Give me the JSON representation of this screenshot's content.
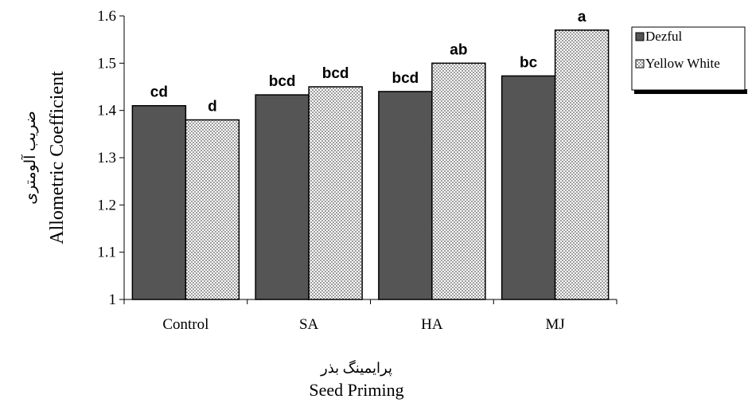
{
  "chart_data": {
    "type": "bar",
    "categories": [
      "Control",
      "SA",
      "HA",
      "MJ"
    ],
    "series": [
      {
        "name": "Dezful",
        "values": [
          1.41,
          1.433,
          1.44,
          1.473
        ],
        "labels": [
          "cd",
          "bcd",
          "bcd",
          "bc"
        ],
        "color": "#555555"
      },
      {
        "name": "Yellow White",
        "values": [
          1.38,
          1.45,
          1.5,
          1.57
        ],
        "labels": [
          "d",
          "bcd",
          "ab",
          "a"
        ],
        "color": "#dcdcdc",
        "pattern": "dotted"
      }
    ],
    "xlabel_fa": "پرایمینگ بذر",
    "xlabel": "Seed Priming",
    "ylabel_fa": "ضریب آلومتری",
    "ylabel": "Allometric Coefficient",
    "ylim": [
      1,
      1.6
    ],
    "yticks": [
      "1",
      "1.1",
      "1.2",
      "1.3",
      "1.4",
      "1.5",
      "1.6"
    ],
    "grid": false,
    "legend_position": "right"
  }
}
